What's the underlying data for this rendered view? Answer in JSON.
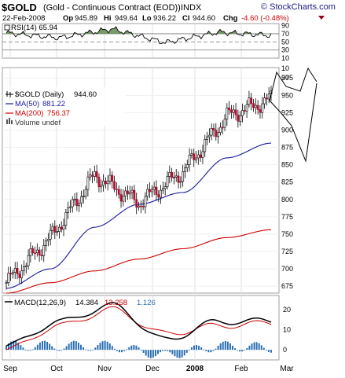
{
  "header": {
    "symbol": "$GOLD",
    "description": "(Gold - Continuous Contract (EOD))",
    "exchange": "INDX",
    "date": "22-Feb-2008",
    "stats": [
      {
        "label": "Op",
        "value": "945.89"
      },
      {
        "label": "Hi",
        "value": "949.64"
      },
      {
        "label": "Lo",
        "value": "936.22"
      },
      {
        "label": "Cl",
        "value": "944.60"
      }
    ],
    "chg_label": "Chg",
    "chg_value": "-4.60 (-0.48%)",
    "chg_color": "#cc0000",
    "watermark": "© StockCharts.com"
  },
  "x_labels": [
    "Sep",
    "Oct",
    "Nov",
    "Dec",
    "2008",
    "Feb",
    "Mar"
  ],
  "chart_data": [
    {
      "type": "line",
      "title": "RSI(14) 65.94",
      "series": [
        {
          "name": "RSI(14)",
          "x": [
            "Sep",
            "Oct",
            "Nov",
            "Dec",
            "2008",
            "Feb"
          ],
          "values": [
            72,
            60,
            82,
            48,
            74,
            65.94
          ]
        }
      ],
      "ylim": [
        10,
        95
      ],
      "yticks": [
        10,
        30,
        50,
        70,
        90
      ],
      "reference_lines": [
        30,
        50,
        70
      ],
      "fill_above_70_color": "#6a8f5a"
    },
    {
      "type": "line",
      "title": "$GOLD (Daily) 944.60",
      "legend": [
        {
          "label": "$GOLD (Daily)",
          "value": "944.60",
          "color": "#000000"
        },
        {
          "label": "MA(50)",
          "value": "881.22",
          "color": "#1a1aa0"
        },
        {
          "label": "MA(200)",
          "value": "756.37",
          "color": "#cc0000"
        },
        {
          "label": "Volume undef",
          "value": "",
          "color": "#555555"
        }
      ],
      "x": [
        "Sep",
        "Oct",
        "Nov",
        "Dec",
        "2008",
        "Feb",
        "Mar"
      ],
      "series": [
        {
          "name": "$GOLD (Daily)",
          "values": [
            680,
            745,
            835,
            795,
            840,
            920,
            944.6
          ]
        },
        {
          "name": "MA(50)",
          "values": [
            672,
            700,
            760,
            793,
            810,
            860,
            881.22
          ]
        },
        {
          "name": "MA(200)",
          "values": [
            665,
            680,
            697,
            714,
            729,
            745,
            756.37
          ]
        }
      ],
      "ylim": [
        665,
        990
      ],
      "yticks": [
        675,
        700,
        725,
        750,
        775,
        800,
        825,
        850,
        875,
        900,
        925,
        950,
        975,
        10,
        30
      ],
      "projection_wedge": true
    },
    {
      "type": "line",
      "title": "MACD(12,26,9) 14.384, 13.258, 1.126",
      "legend": [
        {
          "label": "MACD(12,26,9)",
          "value": "14.384",
          "color": "#000000"
        },
        {
          "label": "",
          "value": "13.258",
          "color": "#cc0000"
        },
        {
          "label": "",
          "value": "1.126",
          "color": "#2b6fb4"
        }
      ],
      "x": [
        "Sep",
        "Oct",
        "Nov",
        "Dec",
        "2008",
        "Feb"
      ],
      "series": [
        {
          "name": "MACD",
          "values": [
            2,
            14,
            22,
            5,
            14,
            14.384
          ]
        },
        {
          "name": "Signal",
          "values": [
            0,
            12,
            20,
            8,
            12,
            13.258
          ]
        },
        {
          "name": "Histogram",
          "values": [
            2,
            2,
            2,
            -3,
            2,
            1.126
          ]
        }
      ],
      "ylim": [
        -5,
        27
      ],
      "yticks": [
        0,
        10,
        20
      ]
    }
  ]
}
